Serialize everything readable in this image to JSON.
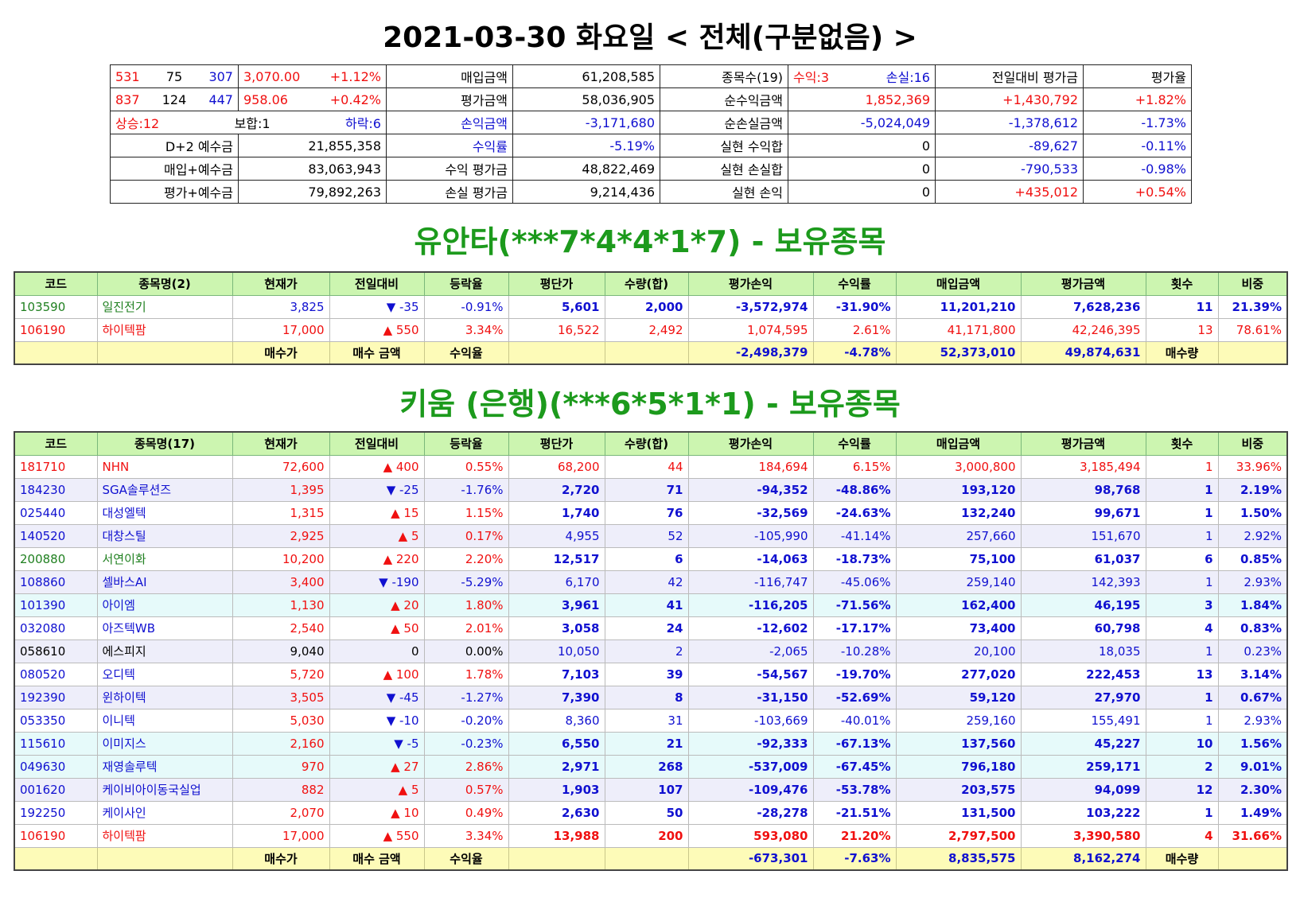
{
  "title": "2021-03-30 화요일 < 전체(구분없음) >",
  "summary": {
    "rows": [
      {
        "cells": [
          {
            "parts": [
              {
                "t": "531",
                "c": "#f01010"
              },
              {
                "t": "75",
                "c": "#000"
              },
              {
                "t": "307",
                "c": "#1010d0"
              }
            ]
          },
          {
            "parts": [
              {
                "t": "3,070.00",
                "c": "#f01010"
              },
              {
                "t": "+1.12%",
                "c": "#f01010"
              }
            ]
          },
          {
            "t": "매입금액",
            "c": "#000"
          },
          {
            "t": "61,208,585",
            "c": "#000"
          },
          {
            "t": "종목수(19)",
            "c": "#000"
          },
          {
            "parts": [
              {
                "t": "수익:3",
                "c": "#f01010"
              },
              {
                "t": "손실:16",
                "c": "#1010d0"
              }
            ]
          },
          {
            "t": "전일대비 평가금",
            "c": "#000"
          },
          {
            "t": "평가율",
            "c": "#000"
          }
        ]
      },
      {
        "cells": [
          {
            "parts": [
              {
                "t": "837",
                "c": "#f01010"
              },
              {
                "t": "124",
                "c": "#000"
              },
              {
                "t": "447",
                "c": "#1010d0"
              }
            ]
          },
          {
            "parts": [
              {
                "t": "958.06",
                "c": "#f01010"
              },
              {
                "t": "+0.42%",
                "c": "#f01010"
              }
            ]
          },
          {
            "t": "평가금액",
            "c": "#000"
          },
          {
            "t": "58,036,905",
            "c": "#000"
          },
          {
            "t": "순수익금액",
            "c": "#000"
          },
          {
            "t": "1,852,369",
            "c": "#f01010"
          },
          {
            "t": "+1,430,792",
            "c": "#f01010"
          },
          {
            "t": "+1.82%",
            "c": "#f01010"
          }
        ]
      },
      {
        "cells": [
          {
            "parts": [
              {
                "t": "상승:12",
                "c": "#f01010"
              },
              {
                "t": "보합:1",
                "c": "#000"
              },
              {
                "t": "하락:6",
                "c": "#1010d0"
              }
            ]
          },
          {
            "t": "손익금액",
            "c": "#1010d0"
          },
          {
            "t": "-3,171,680",
            "c": "#1010d0"
          },
          {
            "t": "순손실금액",
            "c": "#000"
          },
          {
            "t": "-5,024,049",
            "c": "#1010d0"
          },
          {
            "t": "-1,378,612",
            "c": "#1010d0"
          },
          {
            "t": "-1.73%",
            "c": "#1010d0"
          }
        ]
      },
      {
        "cells": [
          {
            "t": "D+2 예수금",
            "c": "#000"
          },
          {
            "t": "21,855,358",
            "c": "#000"
          },
          {
            "t": "수익률",
            "c": "#1010d0"
          },
          {
            "t": "-5.19%",
            "c": "#1010d0"
          },
          {
            "t": "실현 수익합",
            "c": "#000"
          },
          {
            "t": "0",
            "c": "#000"
          },
          {
            "t": "-89,627",
            "c": "#1010d0"
          },
          {
            "t": "-0.11%",
            "c": "#1010d0"
          }
        ]
      },
      {
        "cells": [
          {
            "t": "매입+예수금",
            "c": "#000"
          },
          {
            "t": "83,063,943",
            "c": "#000"
          },
          {
            "t": "수익 평가금",
            "c": "#000"
          },
          {
            "t": "48,822,469",
            "c": "#000"
          },
          {
            "t": "실현 손실합",
            "c": "#000"
          },
          {
            "t": "0",
            "c": "#000"
          },
          {
            "t": "-790,533",
            "c": "#1010d0"
          },
          {
            "t": "-0.98%",
            "c": "#1010d0"
          }
        ]
      },
      {
        "cells": [
          {
            "t": "평가+예수금",
            "c": "#000"
          },
          {
            "t": "79,892,263",
            "c": "#000"
          },
          {
            "t": "손실 평가금",
            "c": "#000"
          },
          {
            "t": "9,214,436",
            "c": "#000"
          },
          {
            "t": "실현 손익",
            "c": "#000"
          },
          {
            "t": "0",
            "c": "#000"
          },
          {
            "t": "+435,012",
            "c": "#f01010"
          },
          {
            "t": "+0.54%",
            "c": "#f01010"
          }
        ]
      }
    ]
  },
  "sections": [
    {
      "title": "유안타(***7*4*4*1*7) - 보유종목",
      "headers": [
        "코드",
        "종목명(2)",
        "현재가",
        "전일대비",
        "등락율",
        "평단가",
        "수량(합)",
        "평가손익",
        "수익률",
        "매입금액",
        "평가금액",
        "횟수",
        "비중"
      ],
      "rows": [
        {
          "cells": [
            "103590",
            "일진전기",
            "3,825",
            "▼ -35",
            "-0.91%",
            "5,601",
            "2,000",
            "-3,572,974",
            "-31.90%",
            "11,201,210",
            "7,628,236",
            "11",
            "21.39%"
          ],
          "bg": "#ffffff",
          "name_color": "#208020",
          "price_color": "#1010d0",
          "change_color": "#1010d0",
          "rate_color": "#1010d0",
          "rest_color": "#1010d0",
          "bold": true
        },
        {
          "cells": [
            "106190",
            "하이텍팜",
            "17,000",
            "▲ 550",
            "3.34%",
            "16,522",
            "2,492",
            "1,074,595",
            "2.61%",
            "41,171,800",
            "42,246,395",
            "13",
            "78.61%"
          ],
          "bg": "#ffffff",
          "name_color": "#f01010",
          "price_color": "#f01010",
          "change_color": "#f01010",
          "rate_color": "#f01010",
          "rest_color": "#f01010",
          "bold": false
        }
      ],
      "footer": {
        "labels": [
          "매수가",
          "매수 금액",
          "수익율"
        ],
        "pl": "-2,498,379",
        "ret": "-4.78%",
        "buy": "52,373,010",
        "eval": "49,874,631",
        "qty_label": "매수량"
      }
    },
    {
      "title": "키움 (은행)(***6*5*1*1) - 보유종목",
      "headers": [
        "코드",
        "종목명(17)",
        "현재가",
        "전일대비",
        "등락율",
        "평단가",
        "수량(합)",
        "평가손익",
        "수익률",
        "매입금액",
        "평가금액",
        "횟수",
        "비중"
      ],
      "rows": [
        {
          "cells": [
            "181710",
            "NHN",
            "72,600",
            "▲ 400",
            "0.55%",
            "68,200",
            "44",
            "184,694",
            "6.15%",
            "3,000,800",
            "3,185,494",
            "1",
            "33.96%"
          ],
          "bg": "#ffffff",
          "name_color": "#f01010",
          "price_color": "#f01010",
          "change_color": "#f01010",
          "rate_color": "#f01010",
          "rest_color": "#f01010",
          "bold": false
        },
        {
          "cells": [
            "184230",
            "SGA솔루션즈",
            "1,395",
            "▼ -25",
            "-1.76%",
            "2,720",
            "71",
            "-94,352",
            "-48.86%",
            "193,120",
            "98,768",
            "1",
            "2.19%"
          ],
          "bg": "#eeeefa",
          "name_color": "#1010d0",
          "price_color": "#f01010",
          "change_color": "#1010d0",
          "rate_color": "#1010d0",
          "rest_color": "#1010d0",
          "bold": true
        },
        {
          "cells": [
            "025440",
            "대성엘텍",
            "1,315",
            "▲ 15",
            "1.15%",
            "1,740",
            "76",
            "-32,569",
            "-24.63%",
            "132,240",
            "99,671",
            "1",
            "1.50%"
          ],
          "bg": "#ffffff",
          "name_color": "#1010d0",
          "price_color": "#f01010",
          "change_color": "#f01010",
          "rate_color": "#f01010",
          "rest_color": "#1010d0",
          "bold": true
        },
        {
          "cells": [
            "140520",
            "대창스틸",
            "2,925",
            "▲ 5",
            "0.17%",
            "4,955",
            "52",
            "-105,990",
            "-41.14%",
            "257,660",
            "151,670",
            "1",
            "2.92%"
          ],
          "bg": "#eeeefa",
          "name_color": "#1010d0",
          "price_color": "#f01010",
          "change_color": "#f01010",
          "rate_color": "#f01010",
          "rest_color": "#1010d0",
          "bold": false
        },
        {
          "cells": [
            "200880",
            "서연이화",
            "10,200",
            "▲ 220",
            "2.20%",
            "12,517",
            "6",
            "-14,063",
            "-18.73%",
            "75,100",
            "61,037",
            "6",
            "0.85%"
          ],
          "bg": "#ffffff",
          "name_color": "#208020",
          "price_color": "#f01010",
          "change_color": "#f01010",
          "rate_color": "#f01010",
          "rest_color": "#1010d0",
          "bold": true
        },
        {
          "cells": [
            "108860",
            "셀바스AI",
            "3,400",
            "▼ -190",
            "-5.29%",
            "6,170",
            "42",
            "-116,747",
            "-45.06%",
            "259,140",
            "142,393",
            "1",
            "2.93%"
          ],
          "bg": "#eeeefa",
          "name_color": "#1010d0",
          "price_color": "#f01010",
          "change_color": "#1010d0",
          "rate_color": "#1010d0",
          "rest_color": "#1010d0",
          "bold": false
        },
        {
          "cells": [
            "101390",
            "아이엠",
            "1,130",
            "▲ 20",
            "1.80%",
            "3,961",
            "41",
            "-116,205",
            "-71.56%",
            "162,400",
            "46,195",
            "3",
            "1.84%"
          ],
          "bg": "#e6fafa",
          "name_color": "#1010d0",
          "price_color": "#f01010",
          "change_color": "#f01010",
          "rate_color": "#f01010",
          "rest_color": "#1010d0",
          "bold": true
        },
        {
          "cells": [
            "032080",
            "아즈텍WB",
            "2,540",
            "▲ 50",
            "2.01%",
            "3,058",
            "24",
            "-12,602",
            "-17.17%",
            "73,400",
            "60,798",
            "4",
            "0.83%"
          ],
          "bg": "#ffffff",
          "name_color": "#1010d0",
          "price_color": "#f01010",
          "change_color": "#f01010",
          "rate_color": "#f01010",
          "rest_color": "#1010d0",
          "bold": true
        },
        {
          "cells": [
            "058610",
            "에스피지",
            "9,040",
            "0",
            "0.00%",
            "10,050",
            "2",
            "-2,065",
            "-10.28%",
            "20,100",
            "18,035",
            "1",
            "0.23%"
          ],
          "bg": "#eeeefa",
          "name_color": "#000000",
          "price_color": "#000000",
          "change_color": "#000000",
          "rate_color": "#000000",
          "rest_color": "#1010d0",
          "bold": false
        },
        {
          "cells": [
            "080520",
            "오디텍",
            "5,720",
            "▲ 100",
            "1.78%",
            "7,103",
            "39",
            "-54,567",
            "-19.70%",
            "277,020",
            "222,453",
            "13",
            "3.14%"
          ],
          "bg": "#ffffff",
          "name_color": "#1010d0",
          "price_color": "#f01010",
          "change_color": "#f01010",
          "rate_color": "#f01010",
          "rest_color": "#1010d0",
          "bold": true
        },
        {
          "cells": [
            "192390",
            "윈하이텍",
            "3,505",
            "▼ -45",
            "-1.27%",
            "7,390",
            "8",
            "-31,150",
            "-52.69%",
            "59,120",
            "27,970",
            "1",
            "0.67%"
          ],
          "bg": "#eeeefa",
          "name_color": "#1010d0",
          "price_color": "#f01010",
          "change_color": "#1010d0",
          "rate_color": "#1010d0",
          "rest_color": "#1010d0",
          "bold": true
        },
        {
          "cells": [
            "053350",
            "이니텍",
            "5,030",
            "▼ -10",
            "-0.20%",
            "8,360",
            "31",
            "-103,669",
            "-40.01%",
            "259,160",
            "155,491",
            "1",
            "2.93%"
          ],
          "bg": "#ffffff",
          "name_color": "#1010d0",
          "price_color": "#f01010",
          "change_color": "#1010d0",
          "rate_color": "#1010d0",
          "rest_color": "#1010d0",
          "bold": false
        },
        {
          "cells": [
            "115610",
            "이미지스",
            "2,160",
            "▼ -5",
            "-0.23%",
            "6,550",
            "21",
            "-92,333",
            "-67.13%",
            "137,560",
            "45,227",
            "10",
            "1.56%"
          ],
          "bg": "#e6fafa",
          "name_color": "#1010d0",
          "price_color": "#f01010",
          "change_color": "#1010d0",
          "rate_color": "#1010d0",
          "rest_color": "#1010d0",
          "bold": true
        },
        {
          "cells": [
            "049630",
            "재영솔루텍",
            "970",
            "▲ 27",
            "2.86%",
            "2,971",
            "268",
            "-537,009",
            "-67.45%",
            "796,180",
            "259,171",
            "2",
            "9.01%"
          ],
          "bg": "#e6fafa",
          "name_color": "#1010d0",
          "price_color": "#f01010",
          "change_color": "#f01010",
          "rate_color": "#f01010",
          "rest_color": "#1010d0",
          "bold": true
        },
        {
          "cells": [
            "001620",
            "케이비아이동국실업",
            "882",
            "▲ 5",
            "0.57%",
            "1,903",
            "107",
            "-109,476",
            "-53.78%",
            "203,575",
            "94,099",
            "12",
            "2.30%"
          ],
          "bg": "#eeeefa",
          "name_color": "#1010d0",
          "price_color": "#f01010",
          "change_color": "#f01010",
          "rate_color": "#f01010",
          "rest_color": "#1010d0",
          "bold": true
        },
        {
          "cells": [
            "192250",
            "케이사인",
            "2,070",
            "▲ 10",
            "0.49%",
            "2,630",
            "50",
            "-28,278",
            "-21.51%",
            "131,500",
            "103,222",
            "1",
            "1.49%"
          ],
          "bg": "#ffffff",
          "name_color": "#1010d0",
          "price_color": "#f01010",
          "change_color": "#f01010",
          "rate_color": "#f01010",
          "rest_color": "#1010d0",
          "bold": true
        },
        {
          "cells": [
            "106190",
            "하이텍팜",
            "17,000",
            "▲ 550",
            "3.34%",
            "13,988",
            "200",
            "593,080",
            "21.20%",
            "2,797,500",
            "3,390,580",
            "4",
            "31.66%"
          ],
          "bg": "#ffffff",
          "name_color": "#f01010",
          "price_color": "#f01010",
          "change_color": "#f01010",
          "rate_color": "#f01010",
          "rest_color": "#f01010",
          "bold": true
        }
      ],
      "footer": {
        "labels": [
          "매수가",
          "매수 금액",
          "수익율"
        ],
        "pl": "-673,301",
        "ret": "-7.63%",
        "buy": "8,835,575",
        "eval": "8,162,274",
        "qty_label": "매수량"
      }
    }
  ]
}
